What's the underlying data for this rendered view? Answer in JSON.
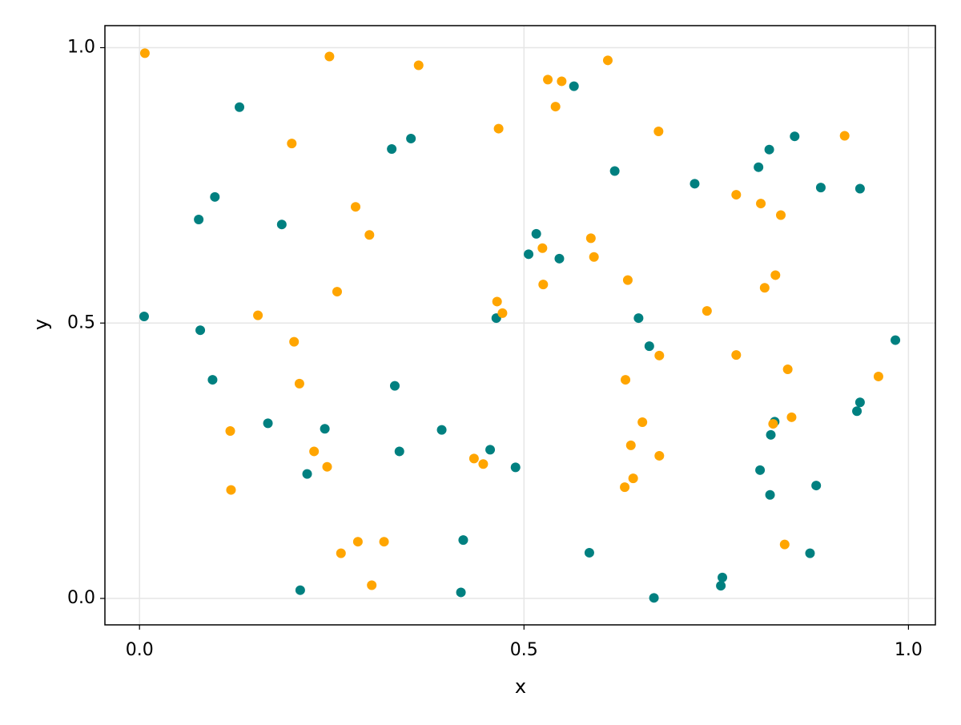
{
  "chart_data": {
    "type": "scatter",
    "title": "",
    "xlabel": "x",
    "ylabel": "y",
    "xlim": [
      -0.045,
      1.035
    ],
    "ylim": [
      -0.048,
      1.04
    ],
    "xticks": [
      0.0,
      0.5,
      1.0
    ],
    "xtick_labels": [
      "0.0",
      "0.5",
      "1.0"
    ],
    "yticks": [
      0.0,
      0.5,
      1.0
    ],
    "ytick_labels": [
      "0.0",
      "0.5",
      "1.0"
    ],
    "grid": true,
    "legend": "none",
    "series": [
      {
        "color": "#008080",
        "points": [
          [
            0.13,
            0.892
          ],
          [
            0.098,
            0.729
          ],
          [
            0.077,
            0.688
          ],
          [
            0.185,
            0.679
          ],
          [
            0.006,
            0.512
          ],
          [
            0.079,
            0.487
          ],
          [
            0.095,
            0.397
          ],
          [
            0.167,
            0.318
          ],
          [
            0.241,
            0.308
          ],
          [
            0.218,
            0.226
          ],
          [
            0.209,
            0.015
          ],
          [
            0.328,
            0.816
          ],
          [
            0.353,
            0.835
          ],
          [
            0.332,
            0.386
          ],
          [
            0.338,
            0.267
          ],
          [
            0.393,
            0.306
          ],
          [
            0.421,
            0.106
          ],
          [
            0.418,
            0.011
          ],
          [
            0.456,
            0.27
          ],
          [
            0.464,
            0.509
          ],
          [
            0.489,
            0.238
          ],
          [
            0.506,
            0.625
          ],
          [
            0.516,
            0.662
          ],
          [
            0.546,
            0.617
          ],
          [
            0.565,
            0.93
          ],
          [
            0.618,
            0.776
          ],
          [
            0.585,
            0.083
          ],
          [
            0.649,
            0.509
          ],
          [
            0.663,
            0.458
          ],
          [
            0.669,
            0.001
          ],
          [
            0.722,
            0.753
          ],
          [
            0.756,
            0.023
          ],
          [
            0.758,
            0.038
          ],
          [
            0.805,
            0.783
          ],
          [
            0.819,
            0.815
          ],
          [
            0.852,
            0.839
          ],
          [
            0.886,
            0.746
          ],
          [
            0.937,
            0.744
          ],
          [
            0.821,
            0.297
          ],
          [
            0.826,
            0.321
          ],
          [
            0.807,
            0.233
          ],
          [
            0.82,
            0.188
          ],
          [
            0.88,
            0.205
          ],
          [
            0.872,
            0.082
          ],
          [
            0.937,
            0.356
          ],
          [
            0.933,
            0.34
          ],
          [
            0.983,
            0.469
          ]
        ]
      },
      {
        "color": "#FFA500",
        "points": [
          [
            0.007,
            0.99
          ],
          [
            0.198,
            0.826
          ],
          [
            0.247,
            0.984
          ],
          [
            0.363,
            0.968
          ],
          [
            0.281,
            0.711
          ],
          [
            0.299,
            0.66
          ],
          [
            0.154,
            0.514
          ],
          [
            0.257,
            0.557
          ],
          [
            0.201,
            0.466
          ],
          [
            0.208,
            0.39
          ],
          [
            0.118,
            0.304
          ],
          [
            0.119,
            0.197
          ],
          [
            0.227,
            0.267
          ],
          [
            0.244,
            0.239
          ],
          [
            0.262,
            0.082
          ],
          [
            0.284,
            0.103
          ],
          [
            0.318,
            0.103
          ],
          [
            0.302,
            0.024
          ],
          [
            0.435,
            0.254
          ],
          [
            0.447,
            0.244
          ],
          [
            0.465,
            0.539
          ],
          [
            0.472,
            0.518
          ],
          [
            0.467,
            0.853
          ],
          [
            0.531,
            0.942
          ],
          [
            0.549,
            0.939
          ],
          [
            0.541,
            0.893
          ],
          [
            0.609,
            0.977
          ],
          [
            0.524,
            0.636
          ],
          [
            0.525,
            0.57
          ],
          [
            0.587,
            0.654
          ],
          [
            0.591,
            0.62
          ],
          [
            0.635,
            0.578
          ],
          [
            0.675,
            0.848
          ],
          [
            0.632,
            0.397
          ],
          [
            0.631,
            0.202
          ],
          [
            0.639,
            0.278
          ],
          [
            0.642,
            0.218
          ],
          [
            0.654,
            0.32
          ],
          [
            0.676,
            0.441
          ],
          [
            0.676,
            0.259
          ],
          [
            0.738,
            0.522
          ],
          [
            0.776,
            0.733
          ],
          [
            0.776,
            0.442
          ],
          [
            0.808,
            0.717
          ],
          [
            0.813,
            0.564
          ],
          [
            0.827,
            0.587
          ],
          [
            0.834,
            0.696
          ],
          [
            0.843,
            0.416
          ],
          [
            0.848,
            0.329
          ],
          [
            0.824,
            0.317
          ],
          [
            0.839,
            0.098
          ],
          [
            0.917,
            0.84
          ],
          [
            0.961,
            0.403
          ]
        ]
      }
    ]
  }
}
